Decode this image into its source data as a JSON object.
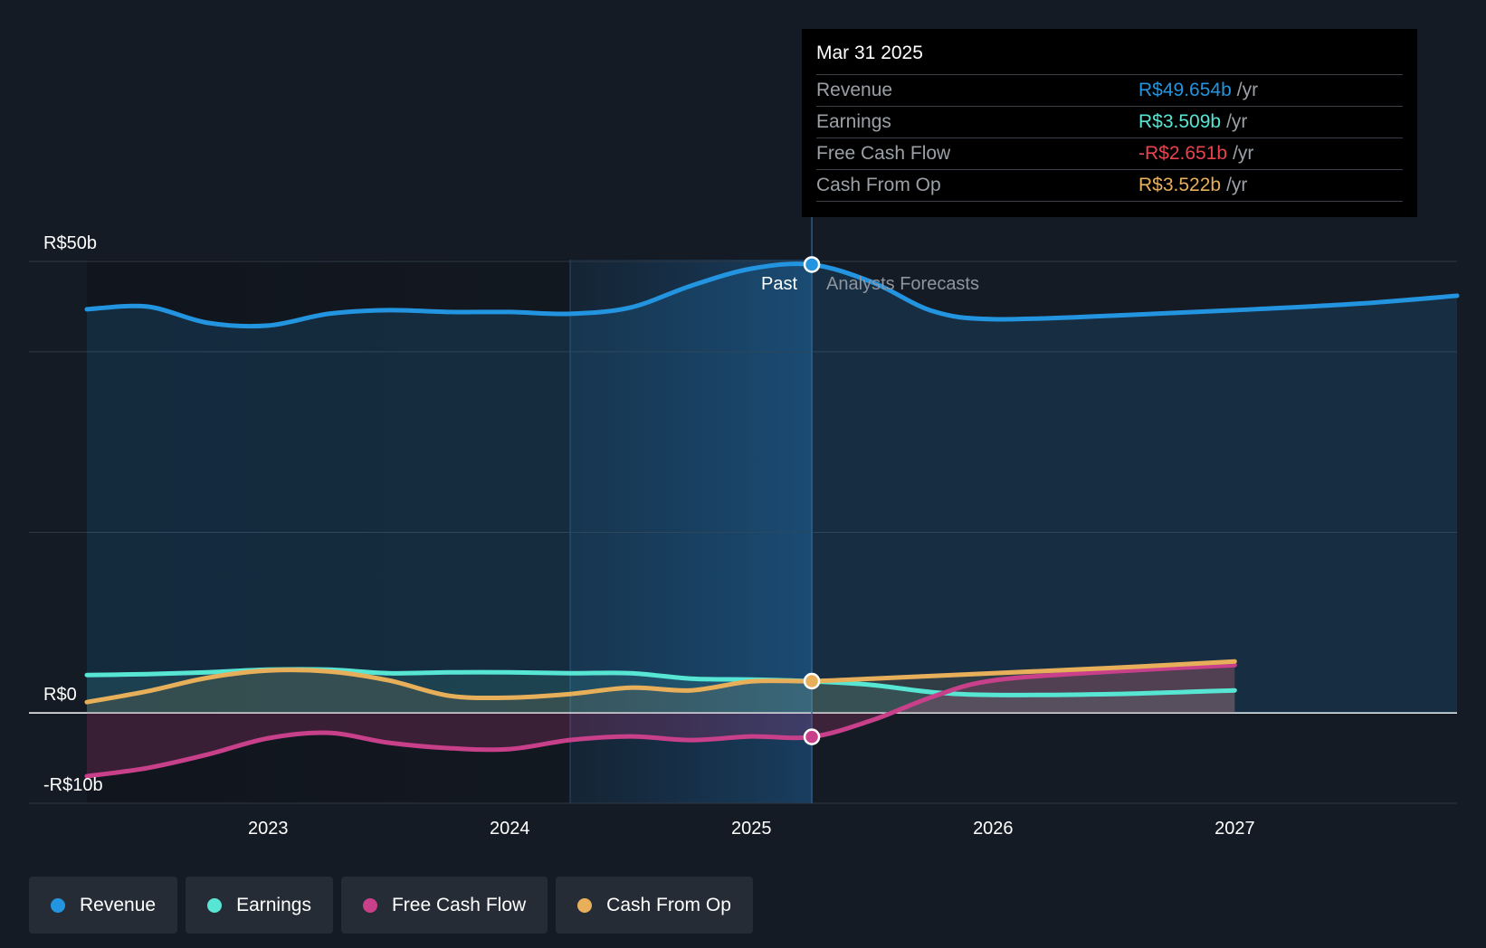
{
  "chart_data": {
    "type": "line",
    "currency_unit": "R$ billions",
    "y_ticks": [
      {
        "value": 50,
        "label": "R$50b"
      },
      {
        "value": 0,
        "label": "R$0"
      },
      {
        "value": -10,
        "label": "-R$10b"
      }
    ],
    "ylim": [
      -10,
      50
    ],
    "xlim": [
      2022.25,
      2027.92
    ],
    "x_ticks": [
      2023,
      2024,
      2025,
      2026,
      2027
    ],
    "grid": true,
    "past_label": "Past",
    "forecast_label": "Analysts Forecasts",
    "forecast_start": 2025.25,
    "series": [
      {
        "name": "Revenue",
        "color": "#2394df",
        "points": [
          [
            2022.25,
            44.7
          ],
          [
            2022.5,
            45.0
          ],
          [
            2022.75,
            43.2
          ],
          [
            2023.0,
            42.9
          ],
          [
            2023.25,
            44.2
          ],
          [
            2023.5,
            44.6
          ],
          [
            2023.75,
            44.4
          ],
          [
            2024.0,
            44.4
          ],
          [
            2024.25,
            44.2
          ],
          [
            2024.5,
            44.9
          ],
          [
            2024.75,
            47.3
          ],
          [
            2025.0,
            49.2
          ],
          [
            2025.25,
            49.654
          ],
          [
            2025.5,
            47.7
          ],
          [
            2025.75,
            44.5
          ],
          [
            2026.0,
            43.6
          ],
          [
            2026.5,
            44.0
          ],
          [
            2027.0,
            44.6
          ],
          [
            2027.5,
            45.3
          ],
          [
            2027.92,
            46.2
          ]
        ]
      },
      {
        "name": "Earnings",
        "color": "#58e6d4",
        "points": [
          [
            2022.25,
            4.2
          ],
          [
            2022.5,
            4.3
          ],
          [
            2022.75,
            4.5
          ],
          [
            2023.0,
            4.8
          ],
          [
            2023.25,
            4.8
          ],
          [
            2023.5,
            4.4
          ],
          [
            2023.75,
            4.5
          ],
          [
            2024.0,
            4.5
          ],
          [
            2024.25,
            4.4
          ],
          [
            2024.5,
            4.4
          ],
          [
            2024.75,
            3.8
          ],
          [
            2025.0,
            3.7
          ],
          [
            2025.25,
            3.509
          ],
          [
            2025.5,
            3.1
          ],
          [
            2025.75,
            2.3
          ],
          [
            2026.0,
            2.0
          ],
          [
            2026.5,
            2.1
          ],
          [
            2027.0,
            2.5
          ]
        ]
      },
      {
        "name": "Free Cash Flow",
        "color": "#c8408a",
        "points": [
          [
            2022.25,
            -7.0
          ],
          [
            2022.5,
            -6.1
          ],
          [
            2022.75,
            -4.6
          ],
          [
            2023.0,
            -2.8
          ],
          [
            2023.25,
            -2.2
          ],
          [
            2023.5,
            -3.3
          ],
          [
            2023.75,
            -3.9
          ],
          [
            2024.0,
            -4.0
          ],
          [
            2024.25,
            -3.0
          ],
          [
            2024.5,
            -2.6
          ],
          [
            2024.75,
            -3.0
          ],
          [
            2025.0,
            -2.6
          ],
          [
            2025.25,
            -2.651
          ],
          [
            2025.5,
            -0.8
          ],
          [
            2025.75,
            1.8
          ],
          [
            2026.0,
            3.6
          ],
          [
            2026.5,
            4.6
          ],
          [
            2027.0,
            5.3
          ]
        ]
      },
      {
        "name": "Cash From Op",
        "color": "#e8af5b",
        "points": [
          [
            2022.25,
            1.2
          ],
          [
            2022.5,
            2.4
          ],
          [
            2022.75,
            3.9
          ],
          [
            2023.0,
            4.7
          ],
          [
            2023.25,
            4.6
          ],
          [
            2023.5,
            3.6
          ],
          [
            2023.75,
            1.9
          ],
          [
            2024.0,
            1.7
          ],
          [
            2024.25,
            2.1
          ],
          [
            2024.5,
            2.8
          ],
          [
            2024.75,
            2.5
          ],
          [
            2025.0,
            3.5
          ],
          [
            2025.25,
            3.522
          ],
          [
            2025.5,
            3.8
          ],
          [
            2025.75,
            4.1
          ],
          [
            2026.0,
            4.4
          ],
          [
            2026.5,
            5.0
          ],
          [
            2027.0,
            5.7
          ]
        ]
      }
    ]
  },
  "tooltip": {
    "date": "Mar 31 2025",
    "unit": "/yr",
    "rows": [
      {
        "label": "Revenue",
        "value": "R$49.654b",
        "color": "#2394df"
      },
      {
        "label": "Earnings",
        "value": "R$3.509b",
        "color": "#58e6d4"
      },
      {
        "label": "Free Cash Flow",
        "value": "-R$2.651b",
        "color": "#e8434f"
      },
      {
        "label": "Cash From Op",
        "value": "R$3.522b",
        "color": "#e8af5b"
      }
    ]
  },
  "legend": [
    {
      "label": "Revenue",
      "color": "#2394df"
    },
    {
      "label": "Earnings",
      "color": "#58e6d4"
    },
    {
      "label": "Free Cash Flow",
      "color": "#c8408a"
    },
    {
      "label": "Cash From Op",
      "color": "#e8af5b"
    }
  ]
}
